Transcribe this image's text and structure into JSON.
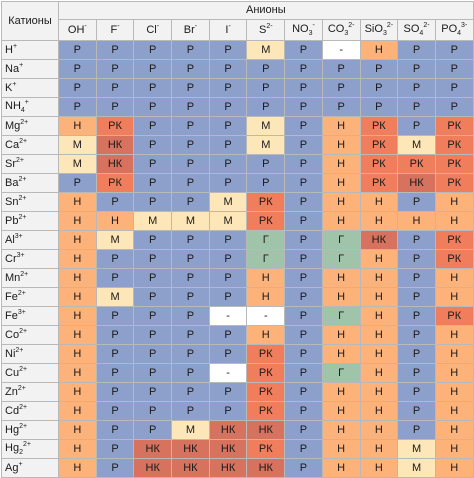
{
  "table": {
    "corner_label": "Катионы",
    "anions_label": "Анионы",
    "anions": [
      {
        "base": "OH",
        "sup": "-"
      },
      {
        "base": "F",
        "sup": "-"
      },
      {
        "base": "Cl",
        "sup": "-"
      },
      {
        "base": "Br",
        "sup": "-"
      },
      {
        "base": "I",
        "sup": "-"
      },
      {
        "base": "S",
        "sup": "2-"
      },
      {
        "base": "NO",
        "sub": "3",
        "sup": "-"
      },
      {
        "base": "CO",
        "sub": "3",
        "sup": "2-"
      },
      {
        "base": "SiO",
        "sub": "3",
        "sup": "2-"
      },
      {
        "base": "SO",
        "sub": "4",
        "sup": "2-"
      },
      {
        "base": "PO",
        "sub": "4",
        "sup": "3-"
      }
    ],
    "rows": [
      {
        "base": "H",
        "sup": "+",
        "cells": [
          "Р",
          "Р",
          "Р",
          "Р",
          "Р",
          "М",
          "Р",
          "-",
          "Н",
          "Р",
          "Р"
        ]
      },
      {
        "base": "Na",
        "sup": "+",
        "cells": [
          "Р",
          "Р",
          "Р",
          "Р",
          "Р",
          "Р",
          "Р",
          "Р",
          "Р",
          "Р",
          "Р"
        ]
      },
      {
        "base": "K",
        "sup": "+",
        "cells": [
          "Р",
          "Р",
          "Р",
          "Р",
          "Р",
          "Р",
          "Р",
          "Р",
          "Р",
          "Р",
          "Р"
        ]
      },
      {
        "base": "NH",
        "sub": "4",
        "sup": "+",
        "cells": [
          "Р",
          "Р",
          "Р",
          "Р",
          "Р",
          "Р",
          "Р",
          "Р",
          "Р",
          "Р",
          "Р"
        ]
      },
      {
        "base": "Mg",
        "sup": "2+",
        "cells": [
          "Н",
          "РК",
          "Р",
          "Р",
          "Р",
          "М",
          "Р",
          "Н",
          "РК",
          "Р",
          "РК"
        ]
      },
      {
        "base": "Ca",
        "sup": "2+",
        "cells": [
          "М",
          "НК",
          "Р",
          "Р",
          "Р",
          "М",
          "Р",
          "Н",
          "РК",
          "М",
          "РК"
        ]
      },
      {
        "base": "Sr",
        "sup": "2+",
        "cells": [
          "М",
          "НК",
          "Р",
          "Р",
          "Р",
          "Р",
          "Р",
          "Н",
          "РК",
          "РК",
          "РК"
        ]
      },
      {
        "base": "Ba",
        "sup": "2+",
        "cells": [
          "Р",
          "РК",
          "Р",
          "Р",
          "Р",
          "Р",
          "Р",
          "Н",
          "РК",
          "НК",
          "РК"
        ]
      },
      {
        "base": "Sn",
        "sup": "2+",
        "cells": [
          "Н",
          "Р",
          "Р",
          "Р",
          "М",
          "РК",
          "Р",
          "Н",
          "Н",
          "Р",
          "Н"
        ]
      },
      {
        "base": "Pb",
        "sup": "2+",
        "cells": [
          "Н",
          "Н",
          "М",
          "М",
          "М",
          "РК",
          "Р",
          "Н",
          "Н",
          "Н",
          "Н"
        ]
      },
      {
        "base": "Al",
        "sup": "3+",
        "cells": [
          "Н",
          "М",
          "Р",
          "Р",
          "Р",
          "Г",
          "Р",
          "Г",
          "НК",
          "Р",
          "РК"
        ]
      },
      {
        "base": "Cr",
        "sup": "3+",
        "cells": [
          "Н",
          "Р",
          "Р",
          "Р",
          "Р",
          "Г",
          "Р",
          "Г",
          "Н",
          "Р",
          "РК"
        ]
      },
      {
        "base": "Mn",
        "sup": "2+",
        "cells": [
          "Н",
          "Р",
          "Р",
          "Р",
          "Р",
          "Н",
          "Р",
          "Н",
          "Н",
          "Р",
          "Н"
        ]
      },
      {
        "base": "Fe",
        "sup": "2+",
        "cells": [
          "Н",
          "М",
          "Р",
          "Р",
          "Р",
          "Н",
          "Р",
          "Н",
          "Н",
          "Р",
          "Н"
        ]
      },
      {
        "base": "Fe",
        "sup": "3+",
        "cells": [
          "Н",
          "Р",
          "Р",
          "Р",
          "-",
          "-",
          "Р",
          "Г",
          "Н",
          "Р",
          "РК"
        ]
      },
      {
        "base": "Co",
        "sup": "2+",
        "cells": [
          "Н",
          "Р",
          "Р",
          "Р",
          "Р",
          "Н",
          "Р",
          "Н",
          "Н",
          "Р",
          "Н"
        ]
      },
      {
        "base": "Ni",
        "sup": "2+",
        "cells": [
          "Н",
          "Р",
          "Р",
          "Р",
          "Р",
          "РК",
          "Р",
          "Н",
          "Н",
          "Р",
          "Н"
        ]
      },
      {
        "base": "Cu",
        "sup": "2+",
        "cells": [
          "Н",
          "Р",
          "Р",
          "Р",
          "-",
          "РК",
          "Р",
          "Г",
          "Н",
          "Р",
          "Н"
        ]
      },
      {
        "base": "Zn",
        "sup": "2+",
        "cells": [
          "Н",
          "Р",
          "Р",
          "Р",
          "Р",
          "РК",
          "Р",
          "Н",
          "Н",
          "Р",
          "Н"
        ]
      },
      {
        "base": "Cd",
        "sup": "2+",
        "cells": [
          "Н",
          "Р",
          "Р",
          "Р",
          "Р",
          "РК",
          "Р",
          "Н",
          "Н",
          "Р",
          "Н"
        ]
      },
      {
        "base": "Hg",
        "sup": "2+",
        "cells": [
          "Н",
          "Р",
          "Р",
          "М",
          "НК",
          "НК",
          "Р",
          "Н",
          "Н",
          "Р",
          "Н"
        ]
      },
      {
        "base": "Hg",
        "sub": "2",
        "sup": "2+",
        "cells": [
          "Н",
          "Р",
          "НК",
          "НК",
          "НК",
          "РК",
          "Р",
          "Н",
          "Н",
          "М",
          "Н"
        ]
      },
      {
        "base": "Ag",
        "sup": "+",
        "cells": [
          "Н",
          "Р",
          "НК",
          "НК",
          "НК",
          "НК",
          "Р",
          "Н",
          "Н",
          "М",
          "Н"
        ]
      }
    ]
  },
  "colors": {
    "Р": "#8da0cb",
    "М": "#fde6b8",
    "Н": "#fdb27a",
    "РК": "#f07e5c",
    "НК": "#d7725e",
    "Г": "#9fc4aa",
    "-": "#ffffff"
  }
}
